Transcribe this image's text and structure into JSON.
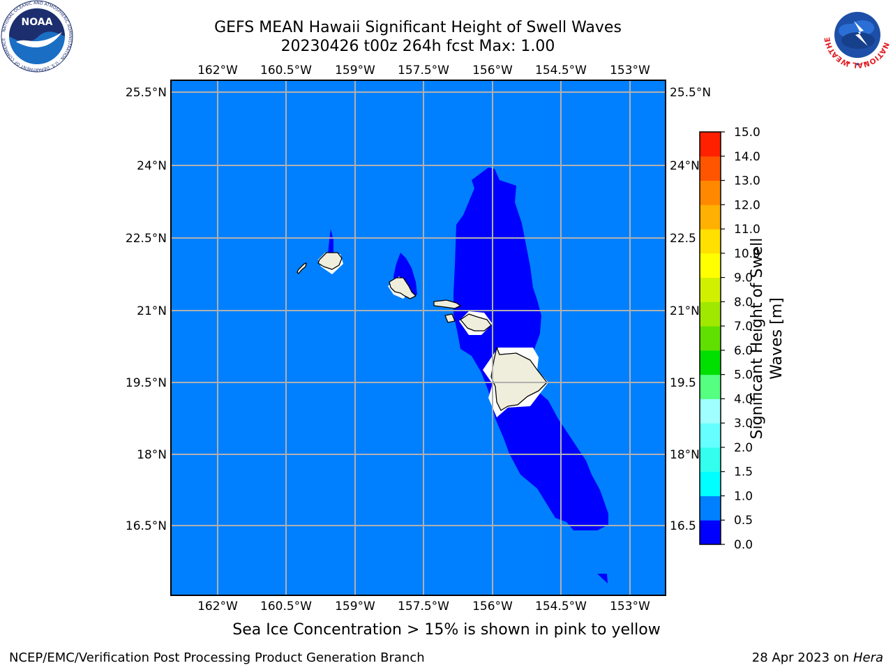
{
  "title": {
    "line1": "GEFS MEAN Hawaii Significant Height of Swell Waves",
    "line2": "20230426 t00z 264h fcst   Max: 1.00"
  },
  "map": {
    "lon_ticks": [
      "162°W",
      "160.5°W",
      "159°W",
      "157.5°W",
      "156°W",
      "154.5°W",
      "153°W"
    ],
    "lat_ticks": [
      "25.5°N",
      "24°N",
      "22.5°N",
      "21°N",
      "19.5°N",
      "18°N",
      "16.5°N"
    ],
    "lat_ticks_right": [
      "25.5°N",
      "24°N",
      "22.5",
      "21°N",
      "19.5",
      "18°N",
      "16.5"
    ],
    "background_class": "0.5 - 1.0 m",
    "colors": {
      "ocean": "#0080ff",
      "swell_low": "#0000ff",
      "land": "#efeedc",
      "grid": "#b0b0b0"
    }
  },
  "colorbar": {
    "label_line1": "Significant Height of Swell",
    "label_line2": "Waves [m]",
    "levels": [
      "0.0",
      "0.5",
      "1.0",
      "1.5",
      "2.0",
      "3.0",
      "4.0",
      "5.0",
      "6.0",
      "7.0",
      "8.0",
      "9.0",
      "10.0",
      "11.0",
      "12.0",
      "13.0",
      "14.0",
      "15.0"
    ],
    "colors": [
      "#0000ff",
      "#0080ff",
      "#00ffff",
      "#33ffee",
      "#66ffff",
      "#a0ffff",
      "#55ff80",
      "#00e000",
      "#60e000",
      "#a0e800",
      "#d0f000",
      "#ffff00",
      "#ffe000",
      "#ffb000",
      "#ff8800",
      "#ff5500",
      "#ff2000"
    ]
  },
  "footer": {
    "ice_note": "Sea Ice Concentration > 15% is shown in pink to yellow",
    "credit": "NCEP/EMC/Verification Post Processing Product Generation Branch",
    "date": "28 Apr 2023 on",
    "host": "Hera"
  },
  "logos": {
    "noaa_text": "NOAA",
    "noaa_ring": "NATIONAL OCEANIC AND ATMOSPHERIC ADMINISTRATION · U.S. DEPARTMENT OF COMMERCE",
    "nws_ring": "NATIONAL WEATHER SERVICE"
  }
}
